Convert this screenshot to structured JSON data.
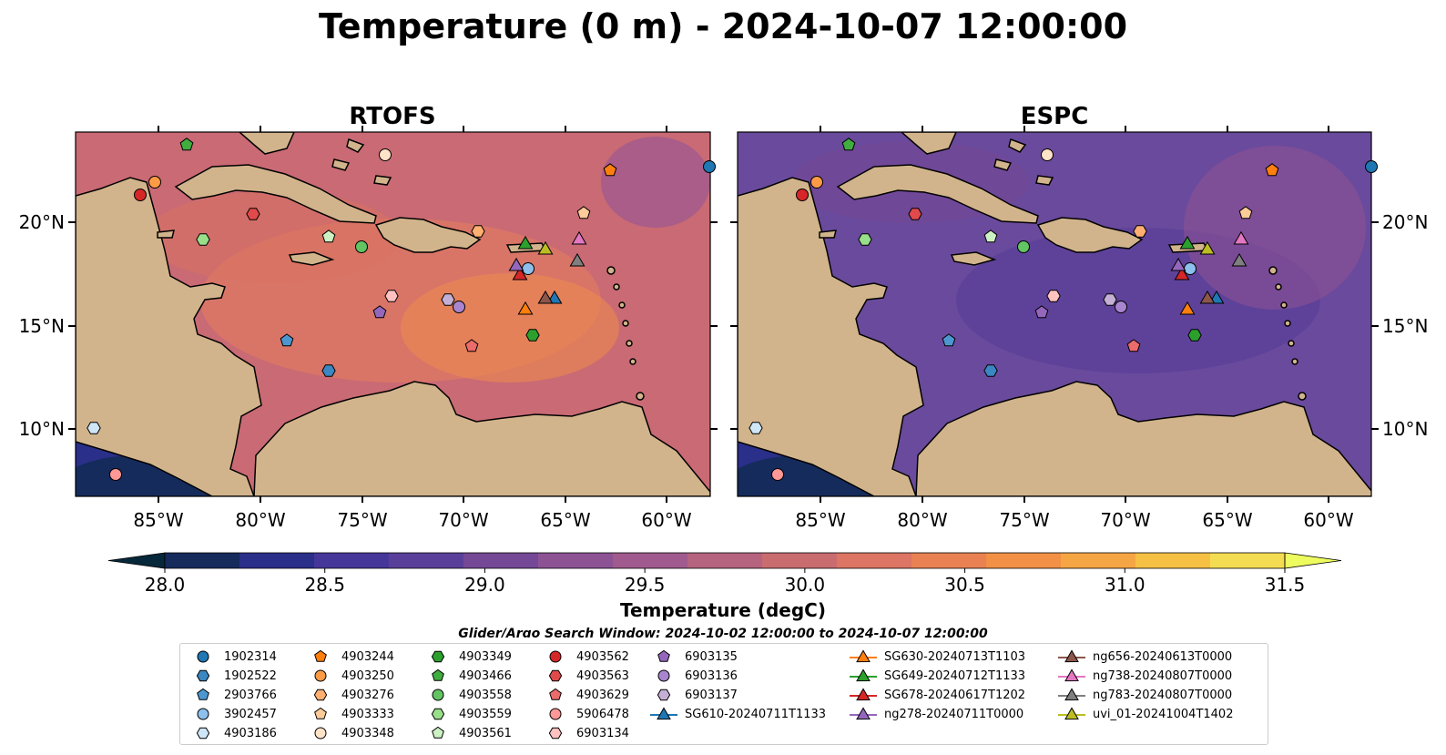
{
  "figure": {
    "title": "Temperature (0 m) - 2024-10-07 12:00:00",
    "colorbar": {
      "label": "Temperature (degC)",
      "ticks": [
        "28.0",
        "28.5",
        "29.0",
        "29.5",
        "30.0",
        "30.5",
        "31.0",
        "31.5"
      ],
      "vmin": 28.0,
      "vmax": 31.5,
      "colors": [
        "#06283a",
        "#152b5c",
        "#2a2f8a",
        "#45379a",
        "#5a3f9a",
        "#744896",
        "#8c5294",
        "#a15a8d",
        "#b5637e",
        "#c96c70",
        "#dc7563",
        "#ea8152",
        "#f29046",
        "#f6a544",
        "#f6c045",
        "#f3dc52",
        "#eefb5e"
      ]
    },
    "maps": [
      {
        "title": "RTOFS",
        "ocean_color": "#c96a74"
      },
      {
        "title": "ESPC",
        "ocean_color": "#6a4a9c"
      }
    ],
    "lon_ticks": [
      "85°W",
      "80°W",
      "75°W",
      "70°W",
      "65°W",
      "60°W"
    ],
    "lat_ticks": [
      "20°N",
      "15°N",
      "10°N"
    ],
    "colors": {
      "land": "#d2b48c",
      "coast": "#000000"
    },
    "legend_title": "Glider/Argo Search Window: 2024-10-02 12:00:00 to 2024-10-07 12:00:00",
    "legend": [
      {
        "label": "1902314",
        "marker": "circle",
        "color": "#1f77b4"
      },
      {
        "label": "1902522",
        "marker": "hexagon",
        "color": "#3a87c2"
      },
      {
        "label": "2903766",
        "marker": "pentagon",
        "color": "#4d97d0"
      },
      {
        "label": "3902457",
        "marker": "circle",
        "color": "#8dc0ec"
      },
      {
        "label": "4903186",
        "marker": "hexagon",
        "color": "#cfe6f7"
      },
      {
        "label": "4903244",
        "marker": "pentagon",
        "color": "#ff7f0e"
      },
      {
        "label": "4903250",
        "marker": "circle",
        "color": "#ff9b45"
      },
      {
        "label": "4903276",
        "marker": "hexagon",
        "color": "#ffb070"
      },
      {
        "label": "4903333",
        "marker": "pentagon",
        "color": "#ffcc99"
      },
      {
        "label": "4903348",
        "marker": "circle",
        "color": "#ffe3c8"
      },
      {
        "label": "4903349",
        "marker": "hexagon",
        "color": "#2ca02c"
      },
      {
        "label": "4903466",
        "marker": "pentagon",
        "color": "#3fae3f"
      },
      {
        "label": "4903558",
        "marker": "circle",
        "color": "#62c462"
      },
      {
        "label": "4903559",
        "marker": "hexagon",
        "color": "#98df8a"
      },
      {
        "label": "4903561",
        "marker": "pentagon",
        "color": "#ccf2c4"
      },
      {
        "label": "4903562",
        "marker": "circle",
        "color": "#d62728"
      },
      {
        "label": "4903563",
        "marker": "hexagon",
        "color": "#e04a4a"
      },
      {
        "label": "4903629",
        "marker": "pentagon",
        "color": "#ec6b6b"
      },
      {
        "label": "5906478",
        "marker": "circle",
        "color": "#ff9896"
      },
      {
        "label": "6903134",
        "marker": "hexagon",
        "color": "#ffc2c0"
      },
      {
        "label": "6903135",
        "marker": "pentagon",
        "color": "#9467bd"
      },
      {
        "label": "6903136",
        "marker": "circle",
        "color": "#a985cf"
      },
      {
        "label": "6903137",
        "marker": "hexagon",
        "color": "#c5b0d5"
      },
      {
        "label": "SG610-20240711T1133",
        "marker": "triangle",
        "color": "#1f77b4"
      },
      {
        "label": "SG630-20240713T1103",
        "marker": "triangle",
        "color": "#ff7f0e"
      },
      {
        "label": "SG649-20240712T1133",
        "marker": "triangle",
        "color": "#2ca02c"
      },
      {
        "label": "SG678-20240617T1202",
        "marker": "triangle",
        "color": "#d62728"
      },
      {
        "label": "ng278-20240711T0000",
        "marker": "triangle",
        "color": "#9467bd"
      },
      {
        "label": "ng656-20240613T0000",
        "marker": "triangle",
        "color": "#8c564b"
      },
      {
        "label": "ng738-20240807T0000",
        "marker": "triangle",
        "color": "#e377c2"
      },
      {
        "label": "ng783-20240807T0000",
        "marker": "triangle",
        "color": "#7f7f7f"
      },
      {
        "label": "uvi_01-20241004T1402",
        "marker": "triangle",
        "color": "#bcbd22"
      }
    ]
  }
}
